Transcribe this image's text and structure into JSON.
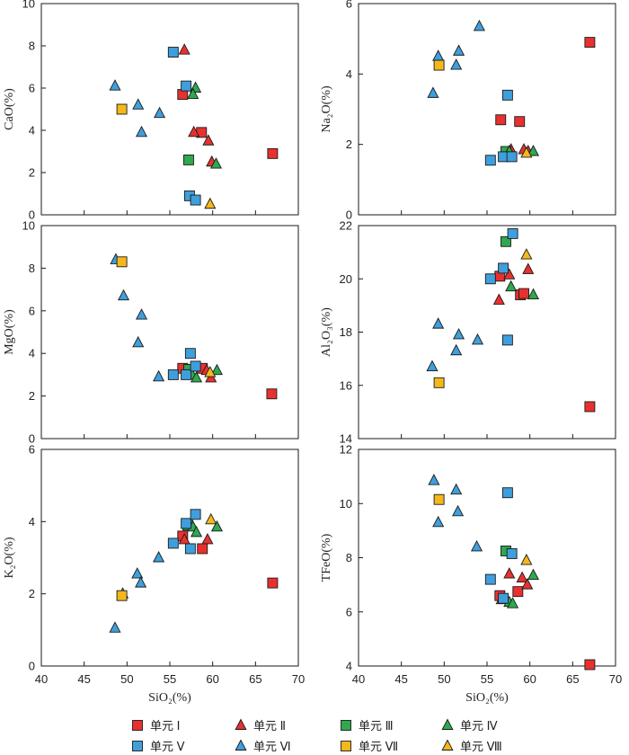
{
  "chart_data": [
    {
      "type": "scatter",
      "ylabel": "CaO(%)",
      "xlabel": "",
      "xlim": [
        40,
        70
      ],
      "ylim": [
        0,
        10
      ],
      "xticks": [
        40,
        45,
        50,
        55,
        60,
        65,
        70
      ],
      "yticks": [
        0,
        2,
        4,
        6,
        8,
        10
      ],
      "show_xtick_labels": false,
      "series": [
        {
          "name": "单元 Ⅰ",
          "marker": "square",
          "color": "#e8312f",
          "points": [
            [
              56.5,
              5.7
            ],
            [
              58.7,
              3.9
            ],
            [
              67.0,
              2.9
            ]
          ]
        },
        {
          "name": "单元 Ⅱ",
          "marker": "triangle",
          "color": "#e8312f",
          "points": [
            [
              56.7,
              7.8
            ],
            [
              57.8,
              3.9
            ],
            [
              59.5,
              3.5
            ],
            [
              59.9,
              2.5
            ]
          ]
        },
        {
          "name": "单元 Ⅲ",
          "marker": "square",
          "color": "#2fa84f",
          "points": [
            [
              57.2,
              2.6
            ]
          ]
        },
        {
          "name": "单元 Ⅳ",
          "marker": "triangle",
          "color": "#2fa84f",
          "points": [
            [
              58.0,
              6.0
            ],
            [
              57.7,
              5.7
            ],
            [
              60.4,
              2.4
            ]
          ]
        },
        {
          "name": "单元 Ⅴ",
          "marker": "square",
          "color": "#3f9fdc",
          "points": [
            [
              55.4,
              7.7
            ],
            [
              56.9,
              6.1
            ],
            [
              57.3,
              0.9
            ],
            [
              58.0,
              0.7
            ]
          ]
        },
        {
          "name": "单元 Ⅵ",
          "marker": "triangle",
          "color": "#3f9fdc",
          "points": [
            [
              48.6,
              6.1
            ],
            [
              51.3,
              5.2
            ],
            [
              51.7,
              3.9
            ],
            [
              53.8,
              4.8
            ]
          ]
        },
        {
          "name": "单元 Ⅶ",
          "marker": "square",
          "color": "#f5b81c",
          "points": [
            [
              49.4,
              5.0
            ]
          ]
        },
        {
          "name": "单元 Ⅷ",
          "marker": "triangle",
          "color": "#f5b81c",
          "points": [
            [
              59.7,
              0.5
            ]
          ]
        }
      ]
    },
    {
      "type": "scatter",
      "ylabel": "Na₂O(%)",
      "xlabel": "",
      "xlim": [
        40,
        70
      ],
      "ylim": [
        0,
        6
      ],
      "xticks": [
        40,
        45,
        50,
        55,
        60,
        65,
        70
      ],
      "yticks": [
        0,
        2,
        4,
        6
      ],
      "show_xtick_labels": false,
      "series": [
        {
          "name": "单元 Ⅰ",
          "marker": "square",
          "color": "#e8312f",
          "points": [
            [
              56.6,
              2.7
            ],
            [
              58.8,
              2.65
            ],
            [
              67.0,
              4.9
            ]
          ]
        },
        {
          "name": "单元 Ⅱ",
          "marker": "triangle",
          "color": "#e8312f",
          "points": [
            [
              57.8,
              1.85
            ],
            [
              59.3,
              1.85
            ],
            [
              59.8,
              1.8
            ]
          ]
        },
        {
          "name": "单元 Ⅲ",
          "marker": "square",
          "color": "#2fa84f",
          "points": [
            [
              57.2,
              1.8
            ]
          ]
        },
        {
          "name": "单元 Ⅳ",
          "marker": "triangle",
          "color": "#2fa84f",
          "points": [
            [
              57.6,
              1.8
            ],
            [
              60.4,
              1.8
            ]
          ]
        },
        {
          "name": "单元 Ⅴ",
          "marker": "square",
          "color": "#3f9fdc",
          "points": [
            [
              55.4,
              1.55
            ],
            [
              56.9,
              1.65
            ],
            [
              57.4,
              3.4
            ],
            [
              57.9,
              1.65
            ]
          ]
        },
        {
          "name": "单元 Ⅵ",
          "marker": "triangle",
          "color": "#3f9fdc",
          "points": [
            [
              48.7,
              3.45
            ],
            [
              49.3,
              4.5
            ],
            [
              51.4,
              4.25
            ],
            [
              51.7,
              4.65
            ],
            [
              54.1,
              5.35
            ]
          ]
        },
        {
          "name": "单元 Ⅶ",
          "marker": "square",
          "color": "#f5b81c",
          "points": [
            [
              49.4,
              4.25
            ]
          ]
        },
        {
          "name": "单元 Ⅷ",
          "marker": "triangle",
          "color": "#f5b81c",
          "points": [
            [
              59.6,
              1.75
            ]
          ]
        }
      ]
    },
    {
      "type": "scatter",
      "ylabel": "MgO(%)",
      "xlabel": "",
      "xlim": [
        40,
        70
      ],
      "ylim": [
        0,
        10
      ],
      "xticks": [
        40,
        45,
        50,
        55,
        60,
        65,
        70
      ],
      "yticks": [
        0,
        2,
        4,
        6,
        8,
        10
      ],
      "show_xtick_labels": false,
      "series": [
        {
          "name": "单元 Ⅰ",
          "marker": "square",
          "color": "#e8312f",
          "points": [
            [
              56.5,
              3.3
            ],
            [
              58.8,
              3.3
            ],
            [
              66.9,
              2.1
            ]
          ]
        },
        {
          "name": "单元 Ⅱ",
          "marker": "triangle",
          "color": "#e8312f",
          "points": [
            [
              57.0,
              3.1
            ],
            [
              59.3,
              3.2
            ],
            [
              59.8,
              2.85
            ]
          ]
        },
        {
          "name": "单元 Ⅲ",
          "marker": "square",
          "color": "#2fa84f",
          "points": [
            [
              57.2,
              3.25
            ]
          ]
        },
        {
          "name": "单元 Ⅳ",
          "marker": "triangle",
          "color": "#2fa84f",
          "points": [
            [
              57.6,
              3.0
            ],
            [
              58.1,
              2.85
            ],
            [
              60.5,
              3.2
            ]
          ]
        },
        {
          "name": "单元 Ⅴ",
          "marker": "square",
          "color": "#3f9fdc",
          "points": [
            [
              55.4,
              3.0
            ],
            [
              56.9,
              3.0
            ],
            [
              57.4,
              4.0
            ],
            [
              58.0,
              3.4
            ]
          ]
        },
        {
          "name": "单元 Ⅵ",
          "marker": "triangle",
          "color": "#3f9fdc",
          "points": [
            [
              48.7,
              8.4
            ],
            [
              49.6,
              6.7
            ],
            [
              51.3,
              4.5
            ],
            [
              51.7,
              5.8
            ],
            [
              53.7,
              2.9
            ]
          ]
        },
        {
          "name": "单元 Ⅶ",
          "marker": "square",
          "color": "#f5b81c",
          "points": [
            [
              49.4,
              8.3
            ]
          ]
        },
        {
          "name": "单元 Ⅷ",
          "marker": "triangle",
          "color": "#f5b81c",
          "points": [
            [
              59.7,
              3.1
            ]
          ]
        }
      ]
    },
    {
      "type": "scatter",
      "ylabel": "Al₂O₃(%)",
      "xlabel": "",
      "xlim": [
        40,
        70
      ],
      "ylim": [
        14,
        22
      ],
      "xticks": [
        40,
        45,
        50,
        55,
        60,
        65,
        70
      ],
      "yticks": [
        14,
        16,
        18,
        20,
        22
      ],
      "show_xtick_labels": false,
      "series": [
        {
          "name": "单元 Ⅰ",
          "marker": "square",
          "color": "#e8312f",
          "points": [
            [
              56.5,
              20.1
            ],
            [
              58.9,
              19.4
            ],
            [
              59.3,
              19.45
            ],
            [
              67.0,
              15.2
            ]
          ]
        },
        {
          "name": "单元 Ⅱ",
          "marker": "triangle",
          "color": "#e8312f",
          "points": [
            [
              56.4,
              19.2
            ],
            [
              57.6,
              20.15
            ],
            [
              59.8,
              20.35
            ]
          ]
        },
        {
          "name": "单元 Ⅲ",
          "marker": "square",
          "color": "#2fa84f",
          "points": [
            [
              57.2,
              21.4
            ]
          ]
        },
        {
          "name": "单元 Ⅳ",
          "marker": "triangle",
          "color": "#2fa84f",
          "points": [
            [
              57.8,
              19.7
            ],
            [
              60.4,
              19.4
            ]
          ]
        },
        {
          "name": "单元 Ⅴ",
          "marker": "square",
          "color": "#3f9fdc",
          "points": [
            [
              55.4,
              20.0
            ],
            [
              56.9,
              20.4
            ],
            [
              57.4,
              17.7
            ],
            [
              58.0,
              21.7
            ]
          ]
        },
        {
          "name": "单元 Ⅵ",
          "marker": "triangle",
          "color": "#3f9fdc",
          "points": [
            [
              48.6,
              16.7
            ],
            [
              49.3,
              18.3
            ],
            [
              51.4,
              17.3
            ],
            [
              51.7,
              17.9
            ],
            [
              53.9,
              17.7
            ]
          ]
        },
        {
          "name": "单元 Ⅶ",
          "marker": "square",
          "color": "#f5b81c",
          "points": [
            [
              49.4,
              16.1
            ]
          ]
        },
        {
          "name": "单元 Ⅷ",
          "marker": "triangle",
          "color": "#f5b81c",
          "points": [
            [
              59.6,
              20.9
            ]
          ]
        }
      ]
    },
    {
      "type": "scatter",
      "ylabel": "K₂O(%)",
      "xlabel": "SiO₂(%)",
      "xlim": [
        40,
        70
      ],
      "ylim": [
        0,
        6
      ],
      "xticks": [
        40,
        45,
        50,
        55,
        60,
        65,
        70
      ],
      "yticks": [
        0,
        2,
        4,
        6
      ],
      "show_xtick_labels": true,
      "series": [
        {
          "name": "单元 Ⅰ",
          "marker": "square",
          "color": "#e8312f",
          "points": [
            [
              56.5,
              3.6
            ],
            [
              58.8,
              3.25
            ],
            [
              67.0,
              2.3
            ]
          ]
        },
        {
          "name": "单元 Ⅱ",
          "marker": "triangle",
          "color": "#e8312f",
          "points": [
            [
              56.7,
              3.5
            ],
            [
              59.4,
              3.5
            ]
          ]
        },
        {
          "name": "单元 Ⅲ",
          "marker": "square",
          "color": "#2fa84f",
          "points": [
            [
              57.1,
              3.9
            ]
          ]
        },
        {
          "name": "单元 Ⅳ",
          "marker": "triangle",
          "color": "#2fa84f",
          "points": [
            [
              57.7,
              3.85
            ],
            [
              58.1,
              3.7
            ],
            [
              60.5,
              3.85
            ]
          ]
        },
        {
          "name": "单元 Ⅴ",
          "marker": "square",
          "color": "#3f9fdc",
          "points": [
            [
              55.4,
              3.4
            ],
            [
              56.9,
              3.95
            ],
            [
              57.4,
              3.25
            ],
            [
              58.0,
              4.2
            ]
          ]
        },
        {
          "name": "单元 Ⅵ",
          "marker": "triangle",
          "color": "#3f9fdc",
          "points": [
            [
              48.6,
              1.05
            ],
            [
              49.5,
              2.0
            ],
            [
              51.2,
              2.55
            ],
            [
              51.6,
              2.3
            ],
            [
              53.7,
              3.0
            ]
          ]
        },
        {
          "name": "单元 Ⅶ",
          "marker": "square",
          "color": "#f5b81c",
          "points": [
            [
              49.4,
              1.95
            ]
          ]
        },
        {
          "name": "单元 Ⅷ",
          "marker": "triangle",
          "color": "#f5b81c",
          "points": [
            [
              59.8,
              4.05
            ]
          ]
        }
      ]
    },
    {
      "type": "scatter",
      "ylabel": "TFeO(%)",
      "xlabel": "SiO₂(%)",
      "xlim": [
        40,
        70
      ],
      "ylim": [
        4,
        12
      ],
      "xticks": [
        40,
        45,
        50,
        55,
        60,
        65,
        70
      ],
      "yticks": [
        4,
        6,
        8,
        10,
        12
      ],
      "show_xtick_labels": true,
      "series": [
        {
          "name": "单元 Ⅰ",
          "marker": "square",
          "color": "#e8312f",
          "points": [
            [
              56.5,
              6.6
            ],
            [
              58.6,
              6.75
            ],
            [
              67.0,
              4.05
            ]
          ]
        },
        {
          "name": "单元 Ⅱ",
          "marker": "triangle",
          "color": "#e8312f",
          "points": [
            [
              56.7,
              6.45
            ],
            [
              57.6,
              7.4
            ],
            [
              59.1,
              7.25
            ],
            [
              59.7,
              7.0
            ]
          ]
        },
        {
          "name": "单元 Ⅲ",
          "marker": "square",
          "color": "#2fa84f",
          "points": [
            [
              57.2,
              8.25
            ]
          ]
        },
        {
          "name": "单元 Ⅳ",
          "marker": "triangle",
          "color": "#2fa84f",
          "points": [
            [
              57.6,
              6.35
            ],
            [
              58.0,
              6.3
            ],
            [
              60.4,
              7.35
            ]
          ]
        },
        {
          "name": "单元 Ⅴ",
          "marker": "square",
          "color": "#3f9fdc",
          "points": [
            [
              55.4,
              7.2
            ],
            [
              56.9,
              6.5
            ],
            [
              57.4,
              10.4
            ],
            [
              57.9,
              8.15
            ]
          ]
        },
        {
          "name": "单元 Ⅵ",
          "marker": "triangle",
          "color": "#3f9fdc",
          "points": [
            [
              48.8,
              10.85
            ],
            [
              49.3,
              9.3
            ],
            [
              51.4,
              10.5
            ],
            [
              51.6,
              9.7
            ],
            [
              53.8,
              8.4
            ]
          ]
        },
        {
          "name": "单元 Ⅶ",
          "marker": "square",
          "color": "#f5b81c",
          "points": [
            [
              49.4,
              10.15
            ]
          ]
        },
        {
          "name": "单元 Ⅷ",
          "marker": "triangle",
          "color": "#f5b81c",
          "points": [
            [
              59.6,
              7.9
            ]
          ]
        }
      ]
    }
  ],
  "legend": [
    {
      "label": "单元 Ⅰ",
      "marker": "square",
      "color": "#e8312f"
    },
    {
      "label": "单元 Ⅱ",
      "marker": "triangle",
      "color": "#e8312f"
    },
    {
      "label": "单元 Ⅲ",
      "marker": "square",
      "color": "#2fa84f"
    },
    {
      "label": "单元 Ⅳ",
      "marker": "triangle",
      "color": "#2fa84f"
    },
    {
      "label": "单元 Ⅴ",
      "marker": "square",
      "color": "#3f9fdc"
    },
    {
      "label": "单元 Ⅵ",
      "marker": "triangle",
      "color": "#3f9fdc"
    },
    {
      "label": "单元 Ⅶ",
      "marker": "square",
      "color": "#f5b81c"
    },
    {
      "label": "单元 Ⅷ",
      "marker": "triangle",
      "color": "#f5b81c"
    }
  ]
}
